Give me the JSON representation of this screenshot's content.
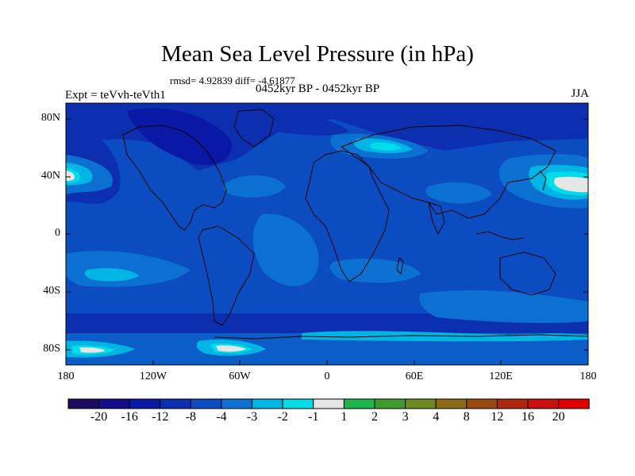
{
  "title": "Mean Sea Level Pressure (in hPa)",
  "stats_line": "rmsd= 4.92839 diff= -4.61877",
  "subtitle": "0452kyr BP - 0452kyr BP",
  "experiment": "Expt = teVvh-teVth1",
  "season": "JJA",
  "lat_labels": [
    "80N",
    "40N",
    "0",
    "40S",
    "80S"
  ],
  "lon_labels": [
    "180",
    "120W",
    "60W",
    "0",
    "60E",
    "120E",
    "180"
  ],
  "colorbar": {
    "labels": [
      "-20",
      "-16",
      "-12",
      "-8",
      "-4",
      "-3",
      "-2",
      "-1",
      "1",
      "2",
      "3",
      "4",
      "8",
      "12",
      "16",
      "20"
    ],
    "colors": [
      "#1b0a5e",
      "#120e8a",
      "#0a18a6",
      "#0c2fb0",
      "#0b4cc0",
      "#0b70d2",
      "#00b4e4",
      "#00dde8",
      "#e6e6e6",
      "#1db64a",
      "#3f9b2e",
      "#6e8a23",
      "#8a6a13",
      "#9a4a0e",
      "#b0280b",
      "#c8100e",
      "#e00000"
    ]
  }
}
